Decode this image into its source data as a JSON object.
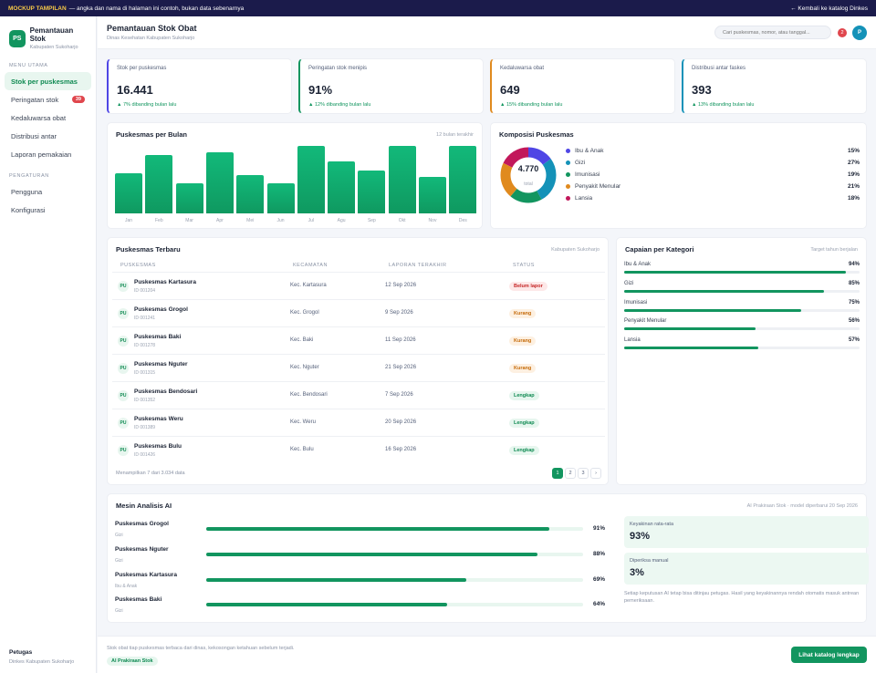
{
  "banner": {
    "tag": "MOCKUP TAMPILAN",
    "text": "— angka dan nama di halaman ini contoh, bukan data sebenarnya",
    "back": "← Kembali ke katalog Dinkes"
  },
  "sidebar": {
    "brand_initials": "PS",
    "brand_title": "Pemantauan Stok",
    "brand_sub": "Kabupaten Sukoharjo",
    "section1": "MENU UTAMA",
    "items": [
      {
        "label": "Stok per puskesmas",
        "badge": ""
      },
      {
        "label": "Peringatan stok",
        "badge": "39"
      },
      {
        "label": "Kedaluwarsa obat",
        "badge": ""
      },
      {
        "label": "Distribusi antar",
        "badge": ""
      },
      {
        "label": "Laporan pemakaian",
        "badge": ""
      }
    ],
    "section2": "PENGATURAN",
    "items2": [
      {
        "label": "Pengguna"
      },
      {
        "label": "Konfigurasi"
      }
    ],
    "footer_role": "Petugas",
    "footer_org": "Dinkes Kabupaten Sukoharjo"
  },
  "header": {
    "title": "Pemantauan Stok Obat",
    "subtitle": "Dinas Kesehatan Kabupaten Sukoharjo",
    "search_placeholder": "Cari puskesmas, nomor, atau tanggal...",
    "notif": "2",
    "avatar": "P"
  },
  "kpis": [
    {
      "label": "Stok per puskesmas",
      "value": "16.441",
      "delta": "▲ 7% dibanding bulan lalu",
      "color": "#4f46e5"
    },
    {
      "label": "Peringatan stok menipis",
      "value": "91%",
      "delta": "▲ 12% dibanding bulan lalu",
      "color": "#12955f"
    },
    {
      "label": "Kedaluwarsa obat",
      "value": "649",
      "delta": "▲ 15% dibanding bulan lalu",
      "color": "#e08a1e"
    },
    {
      "label": "Distribusi antar faskes",
      "value": "393",
      "delta": "▲ 13% dibanding bulan lalu",
      "color": "#1492b8"
    }
  ],
  "monthly": {
    "title": "Puskesmas per Bulan",
    "subtitle": "12 bulan terakhir"
  },
  "chart_data": {
    "type": "bar",
    "categories": [
      "Jan",
      "Feb",
      "Mar",
      "Apr",
      "Mei",
      "Jun",
      "Jul",
      "Agu",
      "Sep",
      "Okt",
      "Nov",
      "Des"
    ],
    "values": [
      58,
      84,
      44,
      88,
      55,
      44,
      97,
      75,
      62,
      97,
      52,
      97
    ],
    "ylim": [
      0,
      100
    ],
    "grid": false
  },
  "composition": {
    "title": "Komposisi Puskesmas",
    "center_value": "4.770",
    "center_label": "total",
    "slices": [
      {
        "name": "Ibu & Anak",
        "pct": "15%",
        "value": 15,
        "color": "#4f46e5"
      },
      {
        "name": "Gizi",
        "pct": "27%",
        "value": 27,
        "color": "#1492b8"
      },
      {
        "name": "Imunisasi",
        "pct": "19%",
        "value": 19,
        "color": "#12955f"
      },
      {
        "name": "Penyakit Menular",
        "pct": "21%",
        "value": 21,
        "color": "#e08a1e"
      },
      {
        "name": "Lansia",
        "pct": "18%",
        "value": 18,
        "color": "#c2185b"
      }
    ]
  },
  "table": {
    "title": "Puskesmas Terbaru",
    "subtitle": "Kabupaten Sukoharjo",
    "headers": [
      "PUSKESMAS",
      "KECAMATAN",
      "LAPORAN TERAKHIR",
      "STATUS"
    ],
    "rows": [
      {
        "initials": "PU",
        "name": "Puskesmas Kartasura",
        "id": "ID 001204",
        "kec": "Kec. Kartasura",
        "date": "12 Sep 2026",
        "status": "Belum lapor",
        "tone": "red"
      },
      {
        "initials": "PU",
        "name": "Puskesmas Grogol",
        "id": "ID 001241",
        "kec": "Kec. Grogol",
        "date": "9 Sep 2026",
        "status": "Kurang",
        "tone": "org"
      },
      {
        "initials": "PU",
        "name": "Puskesmas Baki",
        "id": "ID 001278",
        "kec": "Kec. Baki",
        "date": "11 Sep 2026",
        "status": "Kurang",
        "tone": "org"
      },
      {
        "initials": "PU",
        "name": "Puskesmas Nguter",
        "id": "ID 001315",
        "kec": "Kec. Nguter",
        "date": "21 Sep 2026",
        "status": "Kurang",
        "tone": "org"
      },
      {
        "initials": "PU",
        "name": "Puskesmas Bendosari",
        "id": "ID 001352",
        "kec": "Kec. Bendosari",
        "date": "7 Sep 2026",
        "status": "Lengkap",
        "tone": "grn"
      },
      {
        "initials": "PU",
        "name": "Puskesmas Weru",
        "id": "ID 001389",
        "kec": "Kec. Weru",
        "date": "20 Sep 2026",
        "status": "Lengkap",
        "tone": "grn"
      },
      {
        "initials": "PU",
        "name": "Puskesmas Bulu",
        "id": "ID 001426",
        "kec": "Kec. Bulu",
        "date": "16 Sep 2026",
        "status": "Lengkap",
        "tone": "grn"
      }
    ],
    "footer": "Menampilkan 7 dari 3.034 data",
    "pages": [
      "1",
      "2",
      "3",
      "›"
    ]
  },
  "categories": {
    "title": "Capaian per Kategori",
    "subtitle": "Target tahun berjalan",
    "items": [
      {
        "label": "Ibu & Anak",
        "pct": "94%",
        "value": 94
      },
      {
        "label": "Gizi",
        "pct": "85%",
        "value": 85
      },
      {
        "label": "Imunisasi",
        "pct": "75%",
        "value": 75
      },
      {
        "label": "Penyakit Menular",
        "pct": "56%",
        "value": 56
      },
      {
        "label": "Lansia",
        "pct": "57%",
        "value": 57
      }
    ]
  },
  "ai": {
    "title": "Mesin Analisis AI",
    "subtitle": "AI Prakiraan Stok · model diperbarui 20 Sep 2026",
    "items": [
      {
        "name": "Puskesmas Grogol",
        "group": "Gizi",
        "pct": "91%",
        "value": 91
      },
      {
        "name": "Puskesmas Nguter",
        "group": "Gizi",
        "pct": "88%",
        "value": 88
      },
      {
        "name": "Puskesmas Kartasura",
        "group": "Ibu & Anak",
        "pct": "69%",
        "value": 69
      },
      {
        "name": "Puskesmas Baki",
        "group": "Gizi",
        "pct": "64%",
        "value": 64
      }
    ],
    "stat1_label": "Keyakinan rata-rata",
    "stat1_value": "93%",
    "stat2_label": "Diperiksa manual",
    "stat2_value": "3%",
    "note": "Setiap keputusan AI tetap bisa ditinjau petugas. Hasil yang keyakinannya rendah otomatis masuk antrean pemeriksaan."
  },
  "footer": {
    "text": "Stok obat tiap puskesmas terbaca dari dinas, kekosongan ketahuan sebelum terjadi.",
    "badge": "AI Prakiraan Stok",
    "button": "Lihat katalog lengkap"
  }
}
